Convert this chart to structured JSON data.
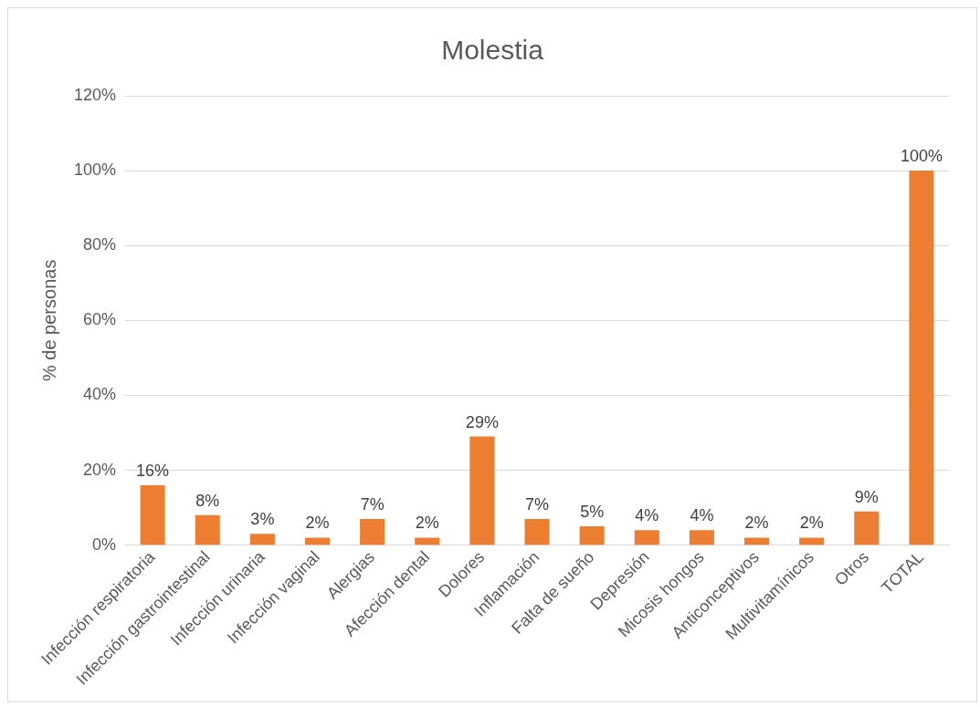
{
  "chart_data": {
    "type": "bar",
    "title": "Molestia",
    "ylabel": "% de personas",
    "categories": [
      "Infección respiratoria",
      "Infección gastrointestinal",
      "Infección urinaria",
      "Infección vaginal",
      "Alergias",
      "Afección dental",
      "Dolores",
      "Inflamación",
      "Falta de sueño",
      "Depresión",
      "Micosis hongos",
      "Anticonceptivos",
      "Multivitamínicos",
      "Otros",
      "TOTAL"
    ],
    "values": [
      16,
      8,
      3,
      2,
      7,
      2,
      29,
      7,
      5,
      4,
      4,
      2,
      2,
      9,
      100
    ],
    "value_labels": [
      "16%",
      "8%",
      "3%",
      "2%",
      "7%",
      "2%",
      "29%",
      "7%",
      "5%",
      "4%",
      "4%",
      "2%",
      "2%",
      "9%",
      "100%"
    ],
    "color": "#ed7d31",
    "ylim": [
      0,
      120
    ],
    "yticks": [
      {
        "value": 0,
        "label": "0%"
      },
      {
        "value": 20,
        "label": "20%"
      },
      {
        "value": 40,
        "label": "40%"
      },
      {
        "value": 60,
        "label": "60%"
      },
      {
        "value": 80,
        "label": "80%"
      },
      {
        "value": 100,
        "label": "100%"
      },
      {
        "value": 120,
        "label": "120%"
      }
    ],
    "grid": "y",
    "legend": false
  }
}
